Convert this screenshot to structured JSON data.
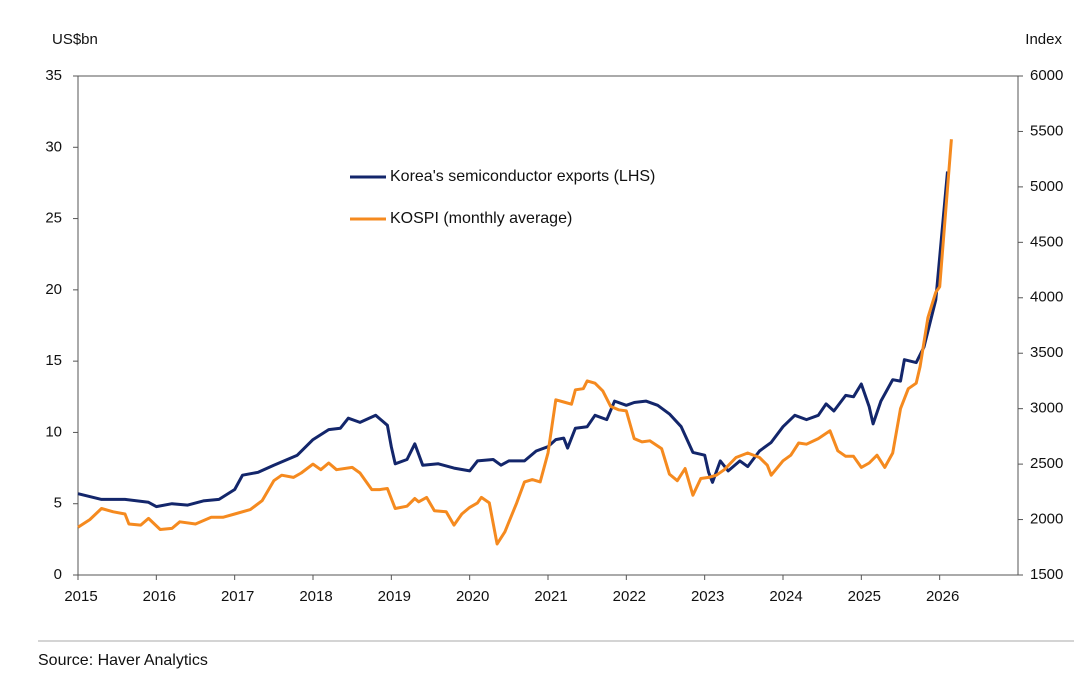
{
  "chart_data": {
    "type": "line",
    "y_label": "US$bn",
    "y2_label": "Index",
    "source": "Source: Haver Analytics",
    "xlim": [
      2015,
      2027
    ],
    "xticks": [
      2015,
      2016,
      2017,
      2018,
      2019,
      2020,
      2021,
      2022,
      2023,
      2024,
      2025,
      2026
    ],
    "ylim": [
      0,
      35
    ],
    "yticks": [
      0,
      5,
      10,
      15,
      20,
      25,
      30,
      35
    ],
    "y2lim": [
      1500,
      6000
    ],
    "y2ticks": [
      1500,
      2000,
      2500,
      3000,
      3500,
      4000,
      4500,
      5000,
      5500,
      6000
    ],
    "series": [
      {
        "name": "Korea's semiconductor exports (LHS)",
        "color": "#13266b",
        "x": [
          2015.0,
          2015.3,
          2015.6,
          2015.9,
          2016.0,
          2016.2,
          2016.4,
          2016.6,
          2016.8,
          2017.0,
          2017.1,
          2017.3,
          2017.5,
          2017.8,
          2018.0,
          2018.2,
          2018.35,
          2018.45,
          2018.6,
          2018.8,
          2018.95,
          2019.0,
          2019.05,
          2019.2,
          2019.3,
          2019.4,
          2019.6,
          2019.8,
          2020.0,
          2020.1,
          2020.3,
          2020.4,
          2020.5,
          2020.7,
          2020.85,
          2021.0,
          2021.1,
          2021.2,
          2021.25,
          2021.35,
          2021.5,
          2021.6,
          2021.75,
          2021.85,
          2022.0,
          2022.1,
          2022.25,
          2022.4,
          2022.55,
          2022.7,
          2022.85,
          2023.0,
          2023.05,
          2023.1,
          2023.2,
          2023.3,
          2023.45,
          2023.55,
          2023.7,
          2023.85,
          2024.0,
          2024.15,
          2024.3,
          2024.45,
          2024.55,
          2024.65,
          2024.8,
          2024.9,
          2025.0,
          2025.1,
          2025.15,
          2025.25,
          2025.4,
          2025.5,
          2025.55,
          2025.7,
          2025.8,
          2025.95,
          2026.1
        ],
        "values": [
          5.7,
          5.3,
          5.3,
          5.1,
          4.8,
          5.0,
          4.9,
          5.2,
          5.3,
          6.0,
          7.0,
          7.2,
          7.7,
          8.4,
          9.5,
          10.2,
          10.3,
          11.0,
          10.7,
          11.2,
          10.5,
          9.0,
          7.8,
          8.1,
          9.2,
          7.7,
          7.8,
          7.5,
          7.3,
          8.0,
          8.1,
          7.7,
          8.0,
          8.0,
          8.7,
          9.0,
          9.5,
          9.6,
          8.9,
          10.3,
          10.4,
          11.2,
          10.9,
          12.2,
          11.9,
          12.1,
          12.2,
          11.9,
          11.3,
          10.4,
          8.6,
          8.4,
          7.2,
          6.5,
          8.0,
          7.3,
          8.0,
          7.6,
          8.7,
          9.3,
          10.4,
          11.2,
          10.9,
          11.2,
          12.0,
          11.5,
          12.6,
          12.5,
          13.4,
          11.8,
          10.6,
          12.2,
          13.7,
          13.6,
          15.1,
          14.9,
          16.0,
          19.3,
          28.3
        ]
      },
      {
        "name": "KOSPI (monthly average)",
        "color": "#f58a1f",
        "axis": "y2",
        "x": [
          2015.0,
          2015.15,
          2015.3,
          2015.45,
          2015.6,
          2015.65,
          2015.8,
          2015.9,
          2016.05,
          2016.2,
          2016.3,
          2016.5,
          2016.7,
          2016.85,
          2017.0,
          2017.2,
          2017.35,
          2017.5,
          2017.6,
          2017.75,
          2017.85,
          2018.0,
          2018.1,
          2018.2,
          2018.3,
          2018.5,
          2018.6,
          2018.75,
          2018.85,
          2018.95,
          2019.05,
          2019.2,
          2019.3,
          2019.35,
          2019.45,
          2019.55,
          2019.7,
          2019.8,
          2019.9,
          2020.0,
          2020.1,
          2020.15,
          2020.25,
          2020.35,
          2020.45,
          2020.6,
          2020.7,
          2020.8,
          2020.9,
          2021.0,
          2021.1,
          2021.2,
          2021.3,
          2021.35,
          2021.45,
          2021.5,
          2021.6,
          2021.7,
          2021.8,
          2021.9,
          2022.0,
          2022.1,
          2022.2,
          2022.3,
          2022.45,
          2022.55,
          2022.65,
          2022.75,
          2022.85,
          2022.95,
          2023.05,
          2023.15,
          2023.25,
          2023.4,
          2023.55,
          2023.7,
          2023.8,
          2023.85,
          2024.0,
          2024.1,
          2024.2,
          2024.3,
          2024.45,
          2024.6,
          2024.7,
          2024.8,
          2024.9,
          2025.0,
          2025.1,
          2025.2,
          2025.3,
          2025.4,
          2025.5,
          2025.6,
          2025.7,
          2025.75,
          2025.85,
          2025.95,
          2026.0,
          2026.15
        ],
        "values": [
          1930,
          2000,
          2100,
          2070,
          2050,
          1960,
          1950,
          2010,
          1910,
          1920,
          1980,
          1960,
          2020,
          2020,
          2050,
          2090,
          2170,
          2350,
          2400,
          2380,
          2420,
          2500,
          2450,
          2510,
          2450,
          2470,
          2420,
          2270,
          2270,
          2280,
          2100,
          2120,
          2190,
          2160,
          2200,
          2080,
          2070,
          1950,
          2050,
          2110,
          2150,
          2200,
          2150,
          1780,
          1890,
          2150,
          2340,
          2360,
          2340,
          2600,
          3080,
          3060,
          3040,
          3170,
          3180,
          3250,
          3230,
          3160,
          3020,
          2990,
          2980,
          2730,
          2700,
          2710,
          2640,
          2410,
          2350,
          2460,
          2220,
          2370,
          2380,
          2400,
          2450,
          2560,
          2600,
          2560,
          2490,
          2400,
          2530,
          2580,
          2690,
          2680,
          2730,
          2800,
          2620,
          2570,
          2570,
          2470,
          2510,
          2580,
          2470,
          2600,
          3000,
          3180,
          3230,
          3380,
          3820,
          4050,
          4100,
          5430
        ]
      }
    ]
  }
}
